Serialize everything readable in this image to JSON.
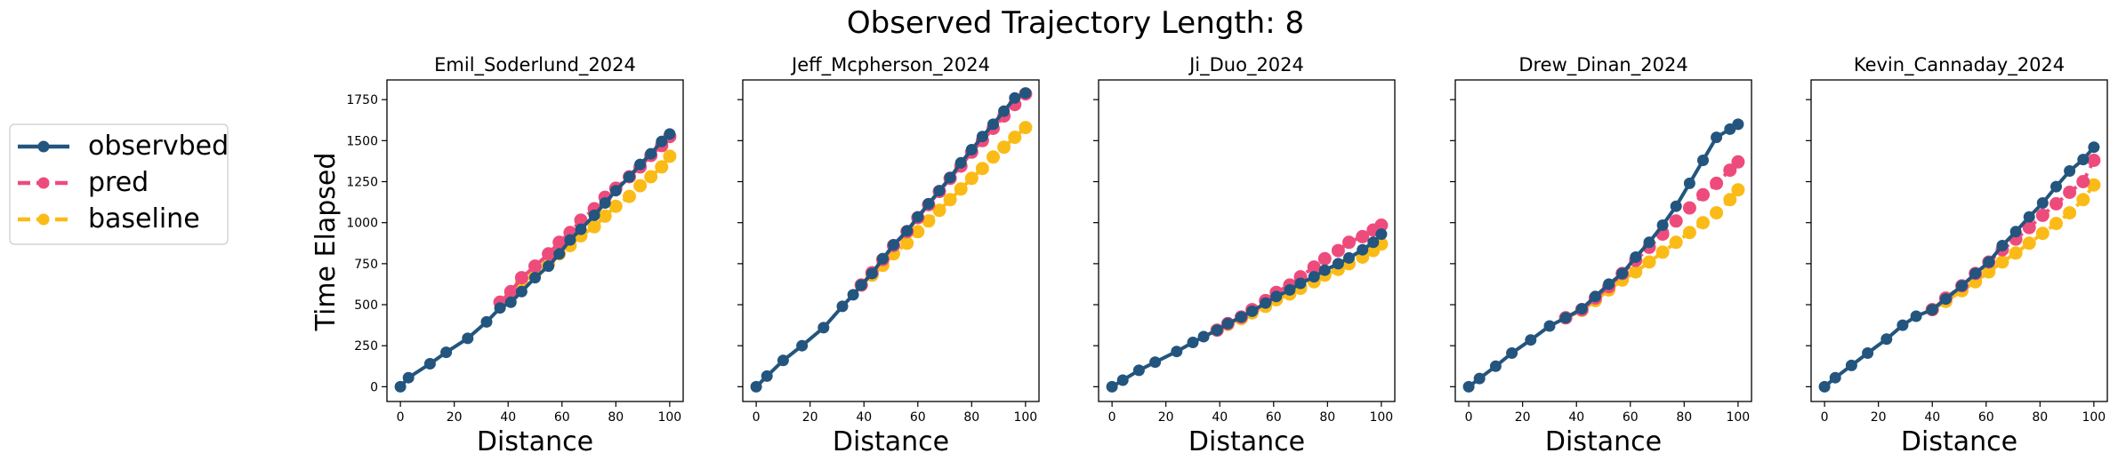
{
  "suptitle": "Observed Trajectory Length: 8",
  "shared_ylabel": "Time Elapsed",
  "legend": {
    "placement": "left",
    "entries": [
      {
        "label": "observbed",
        "color": "#23557e",
        "dash": "solid"
      },
      {
        "label": "pred",
        "color": "#ee4b7d",
        "dash": "dashed"
      },
      {
        "label": "baseline",
        "color": "#fbbb17",
        "dash": "dashed"
      }
    ]
  },
  "colors": {
    "observed": "#23557e",
    "pred": "#ee4b7d",
    "baseline": "#fbbb17"
  },
  "chart_data": [
    {
      "type": "line",
      "title": "Emil_Soderlund_2024",
      "xlabel": "Distance",
      "ylabel": "Time Elapsed",
      "xlim": [
        -5,
        105
      ],
      "ylim": [
        -90,
        1870
      ],
      "xticks": [
        0,
        20,
        40,
        60,
        80,
        100
      ],
      "yticks": [
        0,
        250,
        500,
        750,
        1000,
        1250,
        1500,
        1750
      ],
      "show_ytick_labels": true,
      "series": [
        {
          "name": "observbed",
          "x": [
            0,
            3,
            11,
            17,
            25,
            32,
            37,
            41,
            45,
            50,
            55,
            59,
            63,
            67,
            72,
            76,
            80,
            85,
            89,
            93,
            97,
            100
          ],
          "y": [
            0,
            55,
            140,
            210,
            295,
            395,
            480,
            515,
            580,
            665,
            735,
            810,
            895,
            960,
            1045,
            1120,
            1195,
            1280,
            1355,
            1420,
            1495,
            1540
          ]
        },
        {
          "name": "pred",
          "x": [
            37,
            41,
            45,
            50,
            55,
            59,
            63,
            67,
            72,
            76,
            80,
            85,
            89,
            93,
            97,
            100
          ],
          "y": [
            515,
            580,
            665,
            735,
            810,
            880,
            940,
            1015,
            1085,
            1155,
            1210,
            1280,
            1340,
            1410,
            1470,
            1525
          ]
        },
        {
          "name": "baseline",
          "x": [
            37,
            41,
            45,
            50,
            55,
            59,
            63,
            67,
            72,
            76,
            80,
            85,
            89,
            93,
            97,
            100
          ],
          "y": [
            515,
            575,
            635,
            690,
            750,
            810,
            860,
            920,
            975,
            1040,
            1100,
            1160,
            1225,
            1280,
            1340,
            1405
          ]
        }
      ]
    },
    {
      "type": "line",
      "title": "Jeff_Mcpherson_2024",
      "xlabel": "Distance",
      "xlim": [
        -5,
        105
      ],
      "ylim": [
        -90,
        1870
      ],
      "xticks": [
        0,
        20,
        40,
        60,
        80,
        100
      ],
      "yticks": [
        0,
        250,
        500,
        750,
        1000,
        1250,
        1500,
        1750
      ],
      "show_ytick_labels": false,
      "series": [
        {
          "name": "observbed",
          "x": [
            0,
            4,
            10,
            17,
            25,
            32,
            36,
            39,
            43,
            47,
            51,
            56,
            60,
            64,
            68,
            72,
            76,
            80,
            84,
            88,
            92,
            96,
            100
          ],
          "y": [
            0,
            65,
            160,
            250,
            360,
            490,
            560,
            620,
            690,
            780,
            865,
            950,
            1035,
            1115,
            1195,
            1275,
            1365,
            1445,
            1525,
            1600,
            1680,
            1760,
            1790
          ]
        },
        {
          "name": "pred",
          "x": [
            39,
            43,
            47,
            51,
            56,
            60,
            64,
            68,
            72,
            76,
            80,
            84,
            88,
            92,
            96,
            100
          ],
          "y": [
            620,
            695,
            775,
            860,
            945,
            1030,
            1110,
            1190,
            1270,
            1345,
            1430,
            1500,
            1575,
            1650,
            1720,
            1785
          ]
        },
        {
          "name": "baseline",
          "x": [
            39,
            43,
            47,
            51,
            56,
            60,
            64,
            68,
            72,
            76,
            80,
            84,
            88,
            92,
            96,
            100
          ],
          "y": [
            620,
            680,
            740,
            810,
            875,
            945,
            1010,
            1075,
            1140,
            1205,
            1270,
            1330,
            1400,
            1460,
            1520,
            1580
          ]
        }
      ]
    },
    {
      "type": "line",
      "title": "Ji_Duo_2024",
      "xlabel": "Distance",
      "xlim": [
        -5,
        105
      ],
      "ylim": [
        -90,
        1870
      ],
      "xticks": [
        0,
        20,
        40,
        60,
        80,
        100
      ],
      "yticks": [
        0,
        250,
        500,
        750,
        1000,
        1250,
        1500,
        1750
      ],
      "show_ytick_labels": false,
      "series": [
        {
          "name": "observbed",
          "x": [
            0,
            4,
            10,
            16,
            24,
            30,
            34,
            39,
            43,
            48,
            52,
            57,
            61,
            66,
            70,
            75,
            79,
            84,
            88,
            93,
            97,
            100
          ],
          "y": [
            0,
            40,
            100,
            150,
            215,
            270,
            305,
            345,
            385,
            425,
            460,
            510,
            550,
            590,
            630,
            670,
            710,
            750,
            785,
            835,
            880,
            930
          ]
        },
        {
          "name": "pred",
          "x": [
            39,
            43,
            48,
            52,
            57,
            61,
            66,
            70,
            75,
            79,
            84,
            88,
            93,
            97,
            100
          ],
          "y": [
            345,
            385,
            425,
            470,
            525,
            575,
            620,
            670,
            730,
            780,
            830,
            880,
            915,
            955,
            985
          ]
        },
        {
          "name": "baseline",
          "x": [
            39,
            43,
            48,
            52,
            57,
            61,
            66,
            70,
            75,
            79,
            84,
            88,
            93,
            97,
            100
          ],
          "y": [
            345,
            380,
            415,
            450,
            490,
            530,
            565,
            600,
            640,
            680,
            715,
            750,
            790,
            830,
            870
          ]
        }
      ]
    },
    {
      "type": "line",
      "title": "Drew_Dinan_2024",
      "xlabel": "Distance",
      "xlim": [
        -5,
        105
      ],
      "ylim": [
        -90,
        1870
      ],
      "xticks": [
        0,
        20,
        40,
        60,
        80,
        100
      ],
      "yticks": [
        0,
        250,
        500,
        750,
        1000,
        1250,
        1500,
        1750
      ],
      "show_ytick_labels": false,
      "series": [
        {
          "name": "observbed",
          "x": [
            0,
            4,
            10,
            16,
            23,
            30,
            36,
            42,
            47,
            52,
            57,
            62,
            67,
            72,
            77,
            82,
            87,
            92,
            97,
            100
          ],
          "y": [
            0,
            50,
            125,
            205,
            285,
            370,
            420,
            475,
            550,
            625,
            690,
            790,
            880,
            985,
            1100,
            1240,
            1380,
            1520,
            1570,
            1600
          ]
        },
        {
          "name": "pred",
          "x": [
            36,
            42,
            47,
            52,
            57,
            62,
            67,
            72,
            77,
            82,
            87,
            92,
            97,
            100
          ],
          "y": [
            420,
            470,
            540,
            610,
            690,
            770,
            850,
            930,
            1010,
            1090,
            1170,
            1240,
            1320,
            1370
          ]
        },
        {
          "name": "baseline",
          "x": [
            36,
            42,
            47,
            52,
            57,
            62,
            67,
            72,
            77,
            82,
            87,
            92,
            97,
            100
          ],
          "y": [
            420,
            465,
            525,
            590,
            650,
            700,
            760,
            820,
            880,
            940,
            1000,
            1060,
            1140,
            1200
          ]
        }
      ]
    },
    {
      "type": "line",
      "title": "Kevin_Cannaday_2024",
      "xlabel": "Distance",
      "xlim": [
        -5,
        105
      ],
      "ylim": [
        -90,
        1870
      ],
      "xticks": [
        0,
        20,
        40,
        60,
        80,
        100
      ],
      "yticks": [
        0,
        250,
        500,
        750,
        1000,
        1250,
        1500,
        1750
      ],
      "show_ytick_labels": false,
      "series": [
        {
          "name": "observbed",
          "x": [
            0,
            4,
            10,
            16,
            23,
            29,
            34,
            40,
            45,
            51,
            56,
            61,
            66,
            71,
            76,
            81,
            86,
            91,
            96,
            100
          ],
          "y": [
            0,
            55,
            130,
            205,
            290,
            375,
            430,
            470,
            535,
            615,
            690,
            760,
            860,
            945,
            1035,
            1120,
            1220,
            1315,
            1385,
            1460
          ]
        },
        {
          "name": "pred",
          "x": [
            40,
            45,
            51,
            56,
            61,
            66,
            71,
            76,
            81,
            86,
            91,
            96,
            100
          ],
          "y": [
            470,
            540,
            615,
            690,
            760,
            835,
            900,
            970,
            1045,
            1115,
            1185,
            1250,
            1380
          ]
        },
        {
          "name": "baseline",
          "x": [
            40,
            45,
            51,
            56,
            61,
            66,
            71,
            76,
            81,
            86,
            91,
            96,
            100
          ],
          "y": [
            470,
            520,
            585,
            640,
            700,
            760,
            815,
            875,
            935,
            995,
            1060,
            1140,
            1230
          ]
        }
      ]
    }
  ]
}
